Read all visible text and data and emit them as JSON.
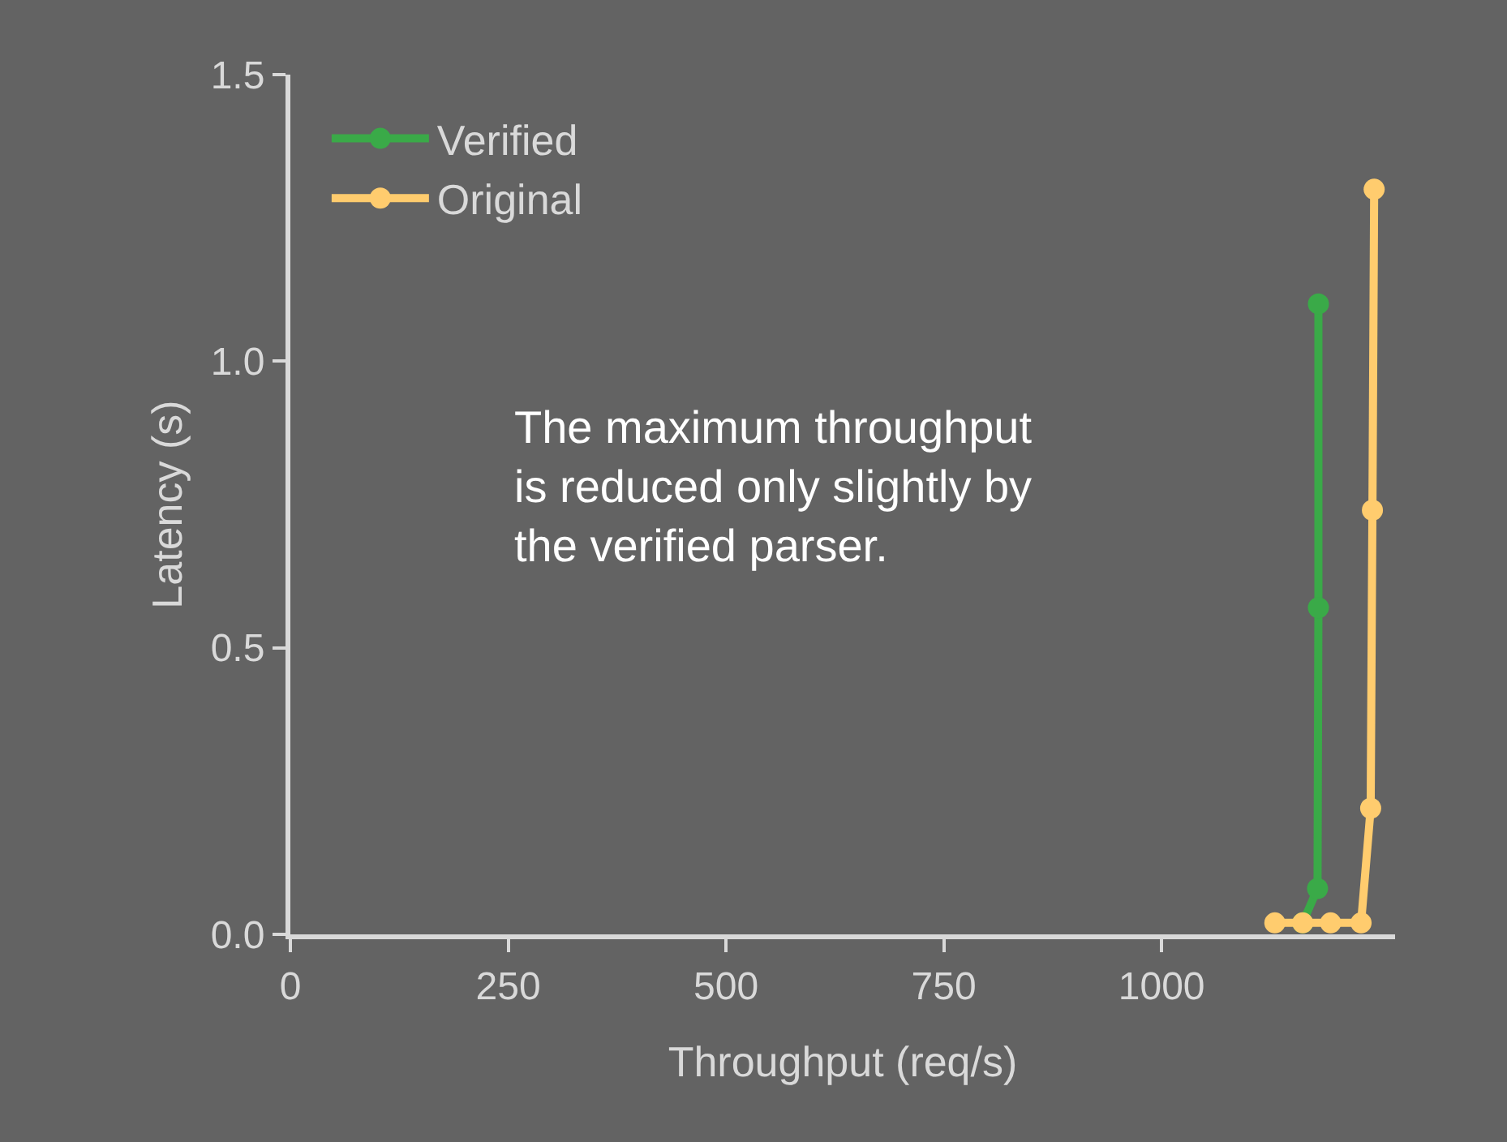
{
  "chart_data": {
    "type": "line",
    "xlabel": "Throughput (req/s)",
    "ylabel": "Latency (s)",
    "xlim": [
      0,
      1268
    ],
    "xticks": [
      0,
      250,
      500,
      750,
      1000
    ],
    "ylim": [
      0,
      1.5
    ],
    "yticks": [
      {
        "value": 0,
        "label": "0.0"
      },
      {
        "value": 0.5,
        "label": "0.5"
      },
      {
        "value": 1.0,
        "label": "1.0"
      },
      {
        "value": 1.5,
        "label": "1.5"
      }
    ],
    "grid": false,
    "legend": "top left",
    "marker": "circle",
    "line_style": "solid",
    "series": [
      {
        "name": "Verified",
        "color": "#3aaa48",
        "x": [
          1162,
          1179,
          1180,
          1180
        ],
        "values": [
          0.02,
          0.08,
          0.57,
          1.1
        ]
      },
      {
        "name": "Original",
        "color": "#ffcc6e",
        "x": [
          1130,
          1162,
          1194,
          1229,
          1240,
          1242,
          1244
        ],
        "values": [
          0.02,
          0.02,
          0.02,
          0.02,
          0.22,
          0.74,
          1.3
        ]
      }
    ],
    "annotations": [
      "The maximum throughput\nis reduced only slightly by\nthe verified parser."
    ]
  }
}
